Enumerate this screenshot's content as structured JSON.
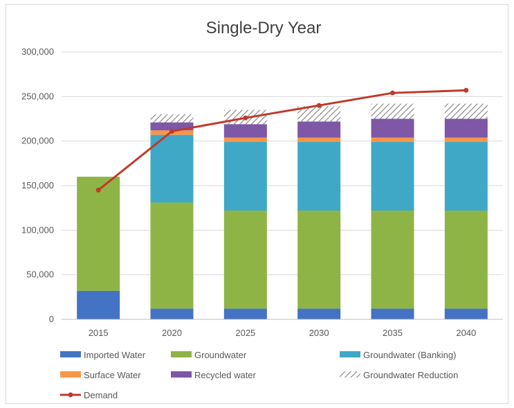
{
  "chart_data": {
    "type": "bar",
    "stacked": true,
    "title": "Single-Dry Year",
    "categories": [
      "2015",
      "2020",
      "2025",
      "2030",
      "2035",
      "2040"
    ],
    "ylim": [
      0,
      300000
    ],
    "y_ticks": [
      "0",
      "50,000",
      "100,000",
      "150,000",
      "200,000",
      "250,000",
      "300,000"
    ],
    "grid": true,
    "legend_position": "bottom",
    "series": [
      {
        "name": "Imported Water",
        "color": "#4472c4",
        "values": [
          32000,
          12000,
          12000,
          12000,
          12000,
          12000
        ]
      },
      {
        "name": "Groundwater",
        "color": "#8fb446",
        "values": [
          128000,
          119000,
          110000,
          110000,
          110000,
          110000
        ]
      },
      {
        "name": "Groundwater (Banking)",
        "color": "#3fa8c6",
        "values": [
          0,
          76000,
          77000,
          77000,
          77000,
          77000
        ]
      },
      {
        "name": "Surface Water",
        "color": "#f79646",
        "values": [
          0,
          5000,
          5000,
          5000,
          5000,
          5000
        ]
      },
      {
        "name": "Recycled water",
        "color": "#7e57a6",
        "values": [
          0,
          9000,
          15000,
          18000,
          21000,
          21000
        ]
      },
      {
        "name": "Groundwater Reduction",
        "color": "#7f7f7f",
        "pattern": "hatch",
        "values": [
          0,
          9000,
          16000,
          17000,
          17000,
          17000
        ]
      }
    ],
    "line_series": [
      {
        "name": "Demand",
        "color": "#c0392b",
        "values": [
          145000,
          211000,
          226000,
          240000,
          254000,
          257000
        ]
      }
    ]
  }
}
